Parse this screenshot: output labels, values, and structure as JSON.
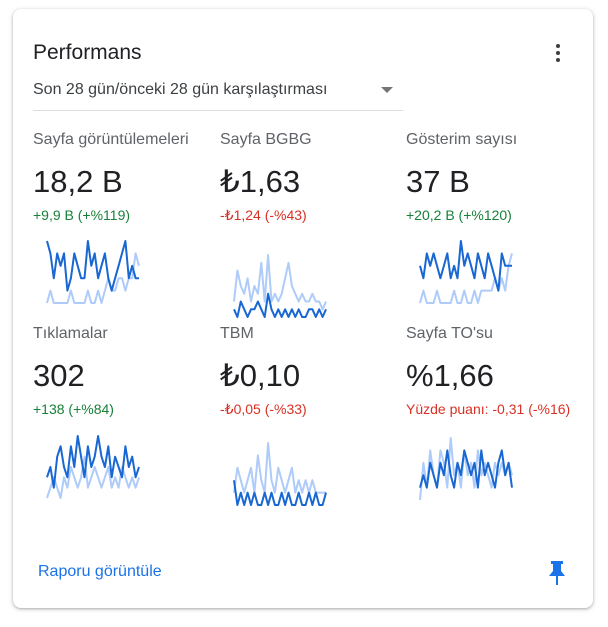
{
  "card": {
    "title": "Performans",
    "range_label": "Son 28 gün/önceki 28 gün karşılaştırması",
    "footer_link": "Raporu görüntüle"
  },
  "colors": {
    "current_series": "#1967d2",
    "previous_series": "#aecbfa",
    "positive": "#188038",
    "negative": "#d93025",
    "link": "#1a73e8"
  },
  "icons": {
    "menu": "more-vert-icon",
    "pin": "pin-icon",
    "dropdown": "arrow-drop-down-icon"
  },
  "metrics": [
    {
      "label": "Sayfa görüntülemeleri",
      "value": "18,2 B",
      "delta": "+9,9 B (+%119)",
      "trend": "positive",
      "current": [
        7,
        6,
        4,
        6,
        5,
        6,
        3,
        4,
        6,
        5,
        4,
        4,
        7,
        5,
        6,
        4,
        5,
        6,
        4,
        3,
        4,
        5,
        6,
        7,
        4,
        5,
        4,
        4
      ],
      "previous": [
        2,
        3,
        2,
        2,
        2,
        2,
        2,
        3,
        2,
        2,
        2,
        2,
        3,
        2,
        2,
        3,
        2,
        3,
        4,
        3,
        3,
        4,
        4,
        3,
        4,
        4,
        6,
        5
      ]
    },
    {
      "label": "Sayfa BGBG",
      "value": "₺1,63",
      "delta": "-₺1,24 (-%43)",
      "trend": "negative",
      "current": [
        2,
        1,
        3,
        2,
        1,
        2,
        2,
        3,
        2,
        1,
        4,
        2,
        1,
        2,
        1,
        2,
        1,
        2,
        1,
        2,
        1,
        1,
        2,
        2,
        1,
        2,
        1,
        2
      ],
      "previous": [
        3,
        7,
        5,
        4,
        6,
        3,
        5,
        4,
        8,
        3,
        9,
        3,
        4,
        3,
        4,
        6,
        8,
        5,
        4,
        3,
        4,
        3,
        3,
        4,
        3,
        3,
        2,
        3
      ]
    },
    {
      "label": "Gösterim sayısı",
      "value": "37 B",
      "delta": "+20,2 B (+%120)",
      "trend": "positive",
      "current": [
        5,
        4,
        6,
        5,
        6,
        5,
        4,
        5,
        6,
        4,
        5,
        4,
        7,
        5,
        6,
        5,
        4,
        6,
        5,
        4,
        6,
        5,
        4,
        3,
        6,
        5,
        5,
        5
      ],
      "previous": [
        2,
        3,
        2,
        2,
        2,
        3,
        2,
        2,
        2,
        2,
        3,
        2,
        2,
        3,
        2,
        2,
        3,
        2,
        3,
        3,
        3,
        3,
        4,
        3,
        4,
        3,
        5,
        6
      ]
    },
    {
      "label": "Tıklamalar",
      "value": "302",
      "delta": "+138 (+%84)",
      "trend": "positive",
      "current": [
        3,
        4,
        2,
        5,
        6,
        4,
        3,
        6,
        4,
        7,
        5,
        3,
        6,
        4,
        5,
        7,
        5,
        4,
        6,
        3,
        5,
        4,
        3,
        6,
        4,
        5,
        3,
        4
      ],
      "previous": [
        1,
        2,
        3,
        2,
        1,
        3,
        2,
        4,
        3,
        2,
        3,
        5,
        2,
        3,
        4,
        3,
        2,
        3,
        4,
        2,
        3,
        2,
        4,
        3,
        2,
        3,
        2,
        3
      ]
    },
    {
      "label": "TBM",
      "value": "₺0,10",
      "delta": "-₺0,05 (-%33)",
      "trend": "negative",
      "current": [
        4,
        2,
        3,
        2,
        3,
        2,
        3,
        2,
        2,
        3,
        2,
        3,
        2,
        2,
        3,
        2,
        3,
        2,
        2,
        3,
        2,
        2,
        3,
        2,
        3,
        2,
        2,
        3
      ],
      "previous": [
        3,
        5,
        4,
        3,
        4,
        5,
        3,
        6,
        4,
        3,
        7,
        4,
        3,
        5,
        4,
        3,
        4,
        5,
        3,
        4,
        3,
        4,
        3,
        4,
        3,
        3,
        3,
        3
      ]
    },
    {
      "label": "Sayfa TO'su",
      "value": "%1,66",
      "delta": "Yüzde puanı: -0,31 (-%16)",
      "trend": "negative",
      "current": [
        3,
        4,
        3,
        5,
        4,
        3,
        5,
        4,
        6,
        4,
        3,
        5,
        4,
        6,
        5,
        4,
        5,
        3,
        6,
        4,
        5,
        4,
        3,
        5,
        6,
        4,
        5,
        3
      ],
      "previous": [
        2,
        5,
        3,
        6,
        4,
        3,
        6,
        5,
        3,
        7,
        4,
        5,
        3,
        6,
        4,
        5,
        3,
        6,
        4,
        5,
        4,
        3,
        5,
        4,
        5,
        4,
        5,
        4
      ]
    }
  ]
}
